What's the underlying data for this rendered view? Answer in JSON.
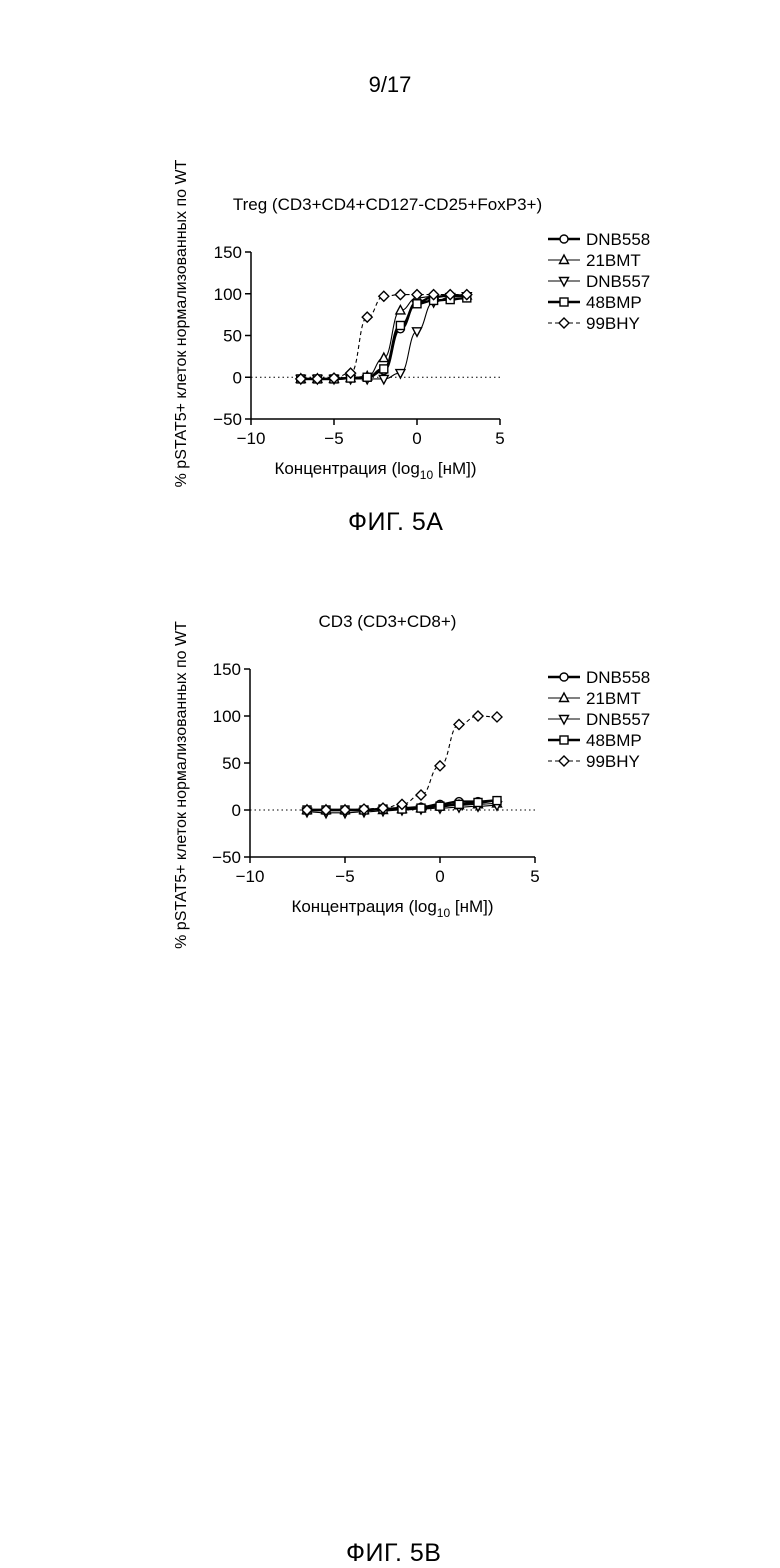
{
  "page": {
    "number": "9/17"
  },
  "chart_data": [
    {
      "type": "scatter",
      "title": "Treg (CD3+CD4+CD127-CD25+FoxP3+)",
      "xlabel": "Концентрация (log10 [нМ])",
      "xlabel_parts": {
        "before": "Концентрация (log",
        "sub": "10",
        "after": " [нМ])"
      },
      "ylabel": "% pSTAT5+ клеток нормализованных по WT",
      "xlim": [
        -10,
        5
      ],
      "ylim": [
        -50,
        150
      ],
      "xticks": [
        "−10",
        "−5",
        "0",
        "5"
      ],
      "yticks": [
        "150",
        "100",
        "50",
        "0",
        "−50"
      ],
      "legend_position": "right",
      "caption": "ФИГ. 5A",
      "series": [
        {
          "name": "DNB558",
          "marker": "circle",
          "line": "bold",
          "x": [
            -7,
            -6,
            -5,
            -4,
            -3,
            -2,
            -1,
            0,
            1,
            2,
            3
          ],
          "y": [
            -2,
            -2,
            -2,
            -1,
            0,
            8,
            58,
            90,
            96,
            98,
            98
          ]
        },
        {
          "name": "21BMT",
          "marker": "triangle-up",
          "line": "thin",
          "x": [
            -7,
            -6,
            -5,
            -4,
            -3,
            -2,
            -1,
            0,
            1,
            2,
            3
          ],
          "y": [
            -2,
            -2,
            -2,
            -1,
            1,
            23,
            80,
            95,
            97,
            97,
            98
          ]
        },
        {
          "name": "DNB557",
          "marker": "triangle-down",
          "line": "thin",
          "x": [
            -7,
            -6,
            -5,
            -4,
            -3,
            -2,
            -1,
            0,
            1,
            2,
            3
          ],
          "y": [
            -2,
            -2,
            -2,
            -2,
            -2,
            -2,
            5,
            55,
            90,
            96,
            97
          ]
        },
        {
          "name": "48BMP",
          "marker": "square",
          "line": "bold",
          "x": [
            -7,
            -6,
            -5,
            -4,
            -3,
            -2,
            -1,
            0,
            1,
            2,
            3
          ],
          "y": [
            -2,
            -2,
            -2,
            -1,
            0,
            10,
            62,
            88,
            92,
            93,
            95
          ]
        },
        {
          "name": "99BHY",
          "marker": "diamond",
          "line": "dashed",
          "x": [
            -7,
            -6,
            -5,
            -4,
            -3,
            -2,
            -1,
            0,
            1,
            2,
            3
          ],
          "y": [
            -2,
            -2,
            -1,
            5,
            72,
            97,
            99,
            99,
            99,
            99,
            99
          ]
        }
      ]
    },
    {
      "type": "scatter",
      "title": "CD3 (CD3+CD8+)",
      "xlabel": "Концентрация (log10 [нМ])",
      "xlabel_parts": {
        "before": "Концентрация (log",
        "sub": "10",
        "after": " [нМ])"
      },
      "ylabel": "% pSTAT5+ клеток нормализованных по WT",
      "xlim": [
        -10,
        5
      ],
      "ylim": [
        -50,
        150
      ],
      "xticks": [
        "−10",
        "−5",
        "0",
        "5"
      ],
      "yticks": [
        "150",
        "100",
        "50",
        "0",
        "−50"
      ],
      "legend_position": "right",
      "caption": "ФИГ. 5B",
      "series": [
        {
          "name": "DNB558",
          "marker": "circle",
          "line": "bold",
          "x": [
            -7,
            -6,
            -5,
            -4,
            -3,
            -2,
            -1,
            0,
            1,
            2,
            3
          ],
          "y": [
            0,
            0,
            0,
            0,
            1,
            2,
            3,
            6,
            9,
            9,
            10
          ]
        },
        {
          "name": "21BMT",
          "marker": "triangle-up",
          "line": "thin",
          "x": [
            -7,
            -6,
            -5,
            -4,
            -3,
            -2,
            -1,
            0,
            1,
            2,
            3
          ],
          "y": [
            0,
            0,
            0,
            0,
            0,
            1,
            2,
            4,
            5,
            6,
            7
          ]
        },
        {
          "name": "DNB557",
          "marker": "triangle-down",
          "line": "thin",
          "x": [
            -7,
            -6,
            -5,
            -4,
            -3,
            -2,
            -1,
            0,
            1,
            2,
            3
          ],
          "y": [
            -2,
            -3,
            -3,
            -2,
            -1,
            0,
            1,
            2,
            3,
            4,
            5
          ]
        },
        {
          "name": "48BMP",
          "marker": "square",
          "line": "bold",
          "x": [
            -7,
            -6,
            -5,
            -4,
            -3,
            -2,
            -1,
            0,
            1,
            2,
            3
          ],
          "y": [
            0,
            0,
            0,
            0,
            1,
            1,
            2,
            4,
            6,
            8,
            10
          ]
        },
        {
          "name": "99BHY",
          "marker": "diamond",
          "line": "dashed",
          "x": [
            -7,
            -6,
            -5,
            -4,
            -3,
            -2,
            -1,
            0,
            1,
            2,
            3
          ],
          "y": [
            0,
            0,
            0,
            1,
            2,
            6,
            16,
            47,
            91,
            100,
            99
          ]
        }
      ]
    }
  ]
}
